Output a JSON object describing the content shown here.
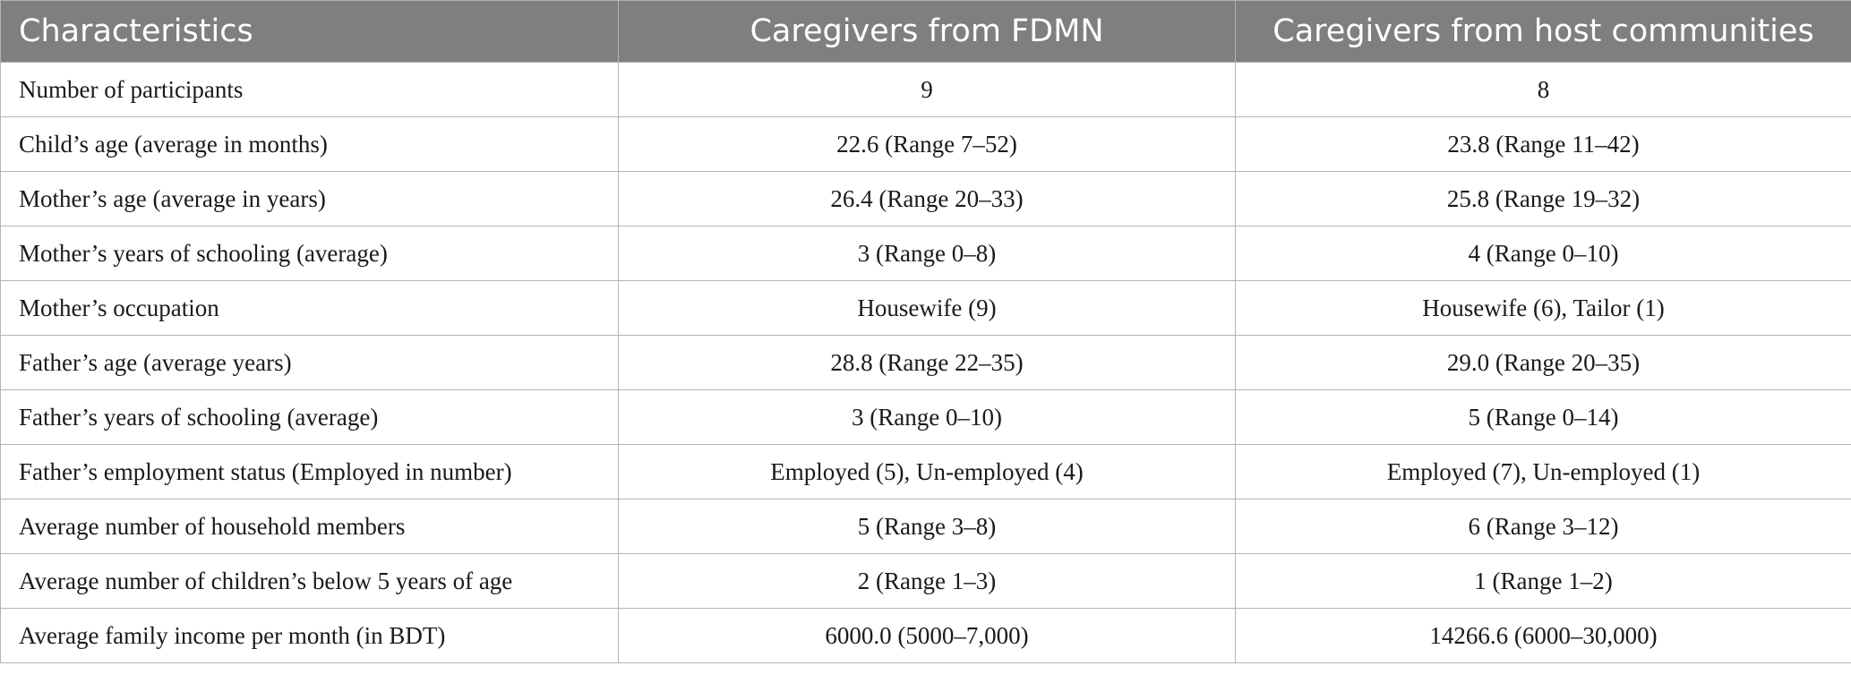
{
  "table": {
    "headers": [
      "Characteristics",
      "Caregivers from FDMN",
      "Caregivers from host communities"
    ],
    "rows": [
      [
        "Number of participants",
        "9",
        "8"
      ],
      [
        "Child’s age (average in months)",
        "22.6 (Range 7–52)",
        "23.8 (Range 11–42)"
      ],
      [
        "Mother’s age (average in years)",
        "26.4 (Range 20–33)",
        "25.8 (Range 19–32)"
      ],
      [
        "Mother’s years of schooling (average)",
        "3 (Range 0–8)",
        "4 (Range 0–10)"
      ],
      [
        "Mother’s occupation",
        "Housewife (9)",
        "Housewife (6), Tailor (1)"
      ],
      [
        "Father’s age (average years)",
        "28.8 (Range 22–35)",
        "29.0 (Range 20–35)"
      ],
      [
        "Father’s years of schooling (average)",
        "3 (Range 0–10)",
        "5 (Range 0–14)"
      ],
      [
        "Father’s employment status (Employed in number)",
        "Employed (5), Un-employed (4)",
        "Employed (7), Un-employed (1)"
      ],
      [
        "Average number of household members",
        "5 (Range 3–8)",
        "6 (Range 3–12)"
      ],
      [
        "Average number of children’s below 5 years of age",
        "2 (Range 1–3)",
        "1 (Range 1–2)"
      ],
      [
        "Average family income per month (in BDT)",
        "6000.0 (5000–7,000)",
        "14266.6 (6000–30,000)"
      ]
    ]
  }
}
